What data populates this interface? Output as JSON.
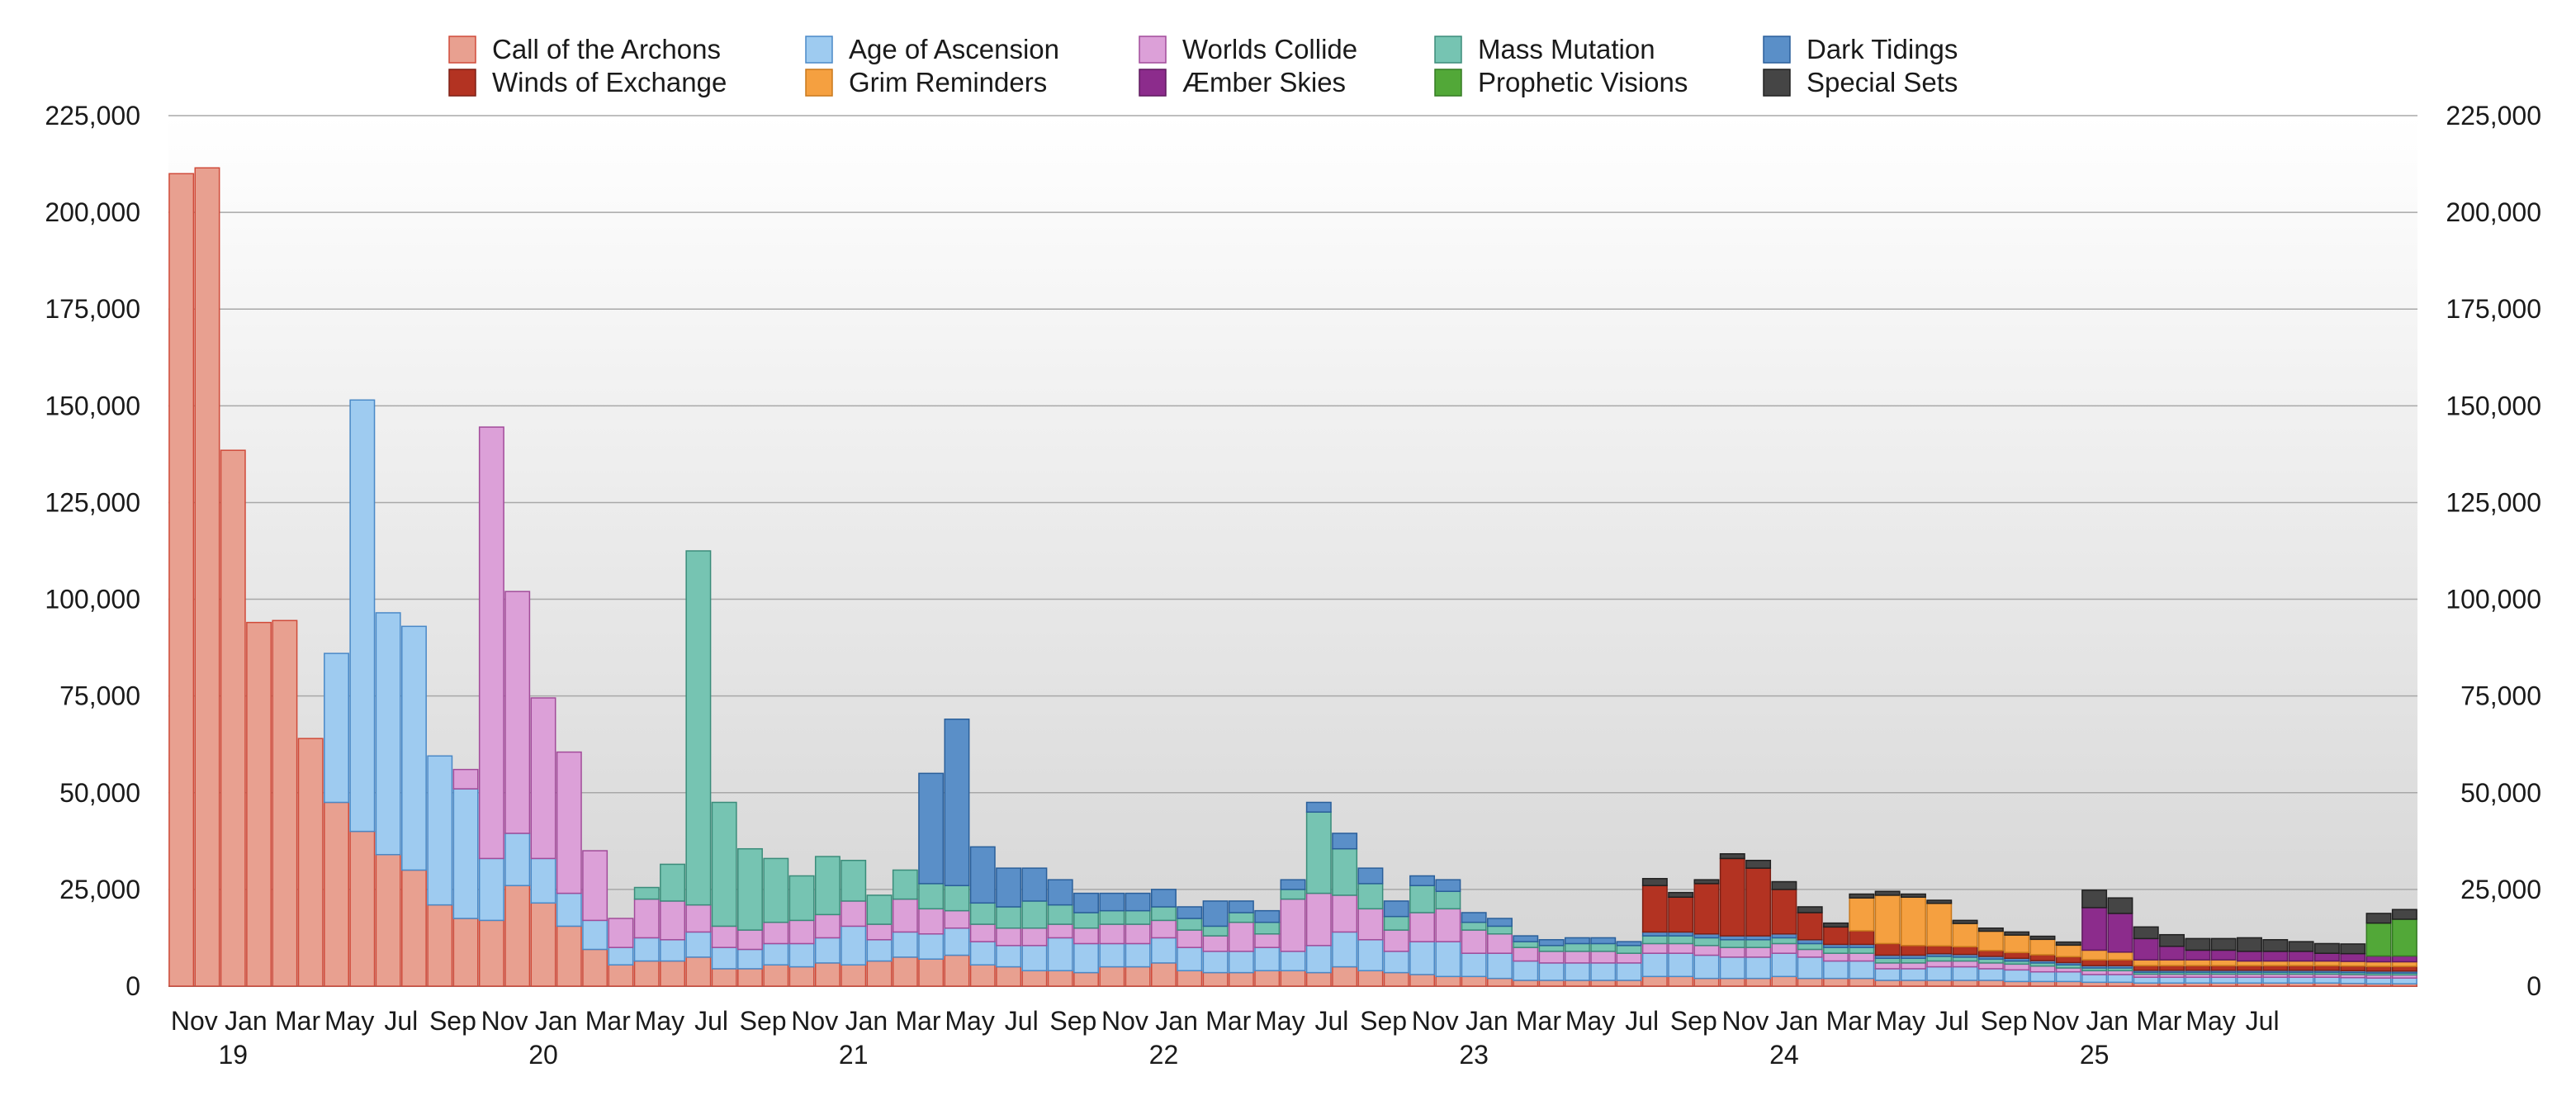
{
  "chart_data": {
    "type": "stacked-bar",
    "title": "",
    "xlabel": "",
    "ylabel": "",
    "ylim": [
      0,
      225000
    ],
    "yticks": [
      "0",
      "25,000",
      "50,000",
      "75,000",
      "100,000",
      "125,000",
      "150,000",
      "175,000",
      "200,000",
      "225,000"
    ],
    "y_axis_sides": "left and right",
    "grid": "horizontal",
    "background": "gradient white to light gray",
    "legend": "top, 5 columns x 2 rows",
    "start_month": "2018-11",
    "month_tick_labels": [
      "Nov",
      "Jan",
      "Mar",
      "May",
      "Jul",
      "Sep",
      "Nov",
      "Jan",
      "Mar",
      "May",
      "Jul",
      "Sep",
      "Nov",
      "Jan",
      "Mar",
      "May",
      "Jul",
      "Sep",
      "Nov",
      "Jan",
      "Mar",
      "May",
      "Jul",
      "Sep",
      "Nov",
      "Jan",
      "Mar",
      "May",
      "Jul",
      "Sep",
      "Nov",
      "Jan",
      "Mar",
      "May",
      "Jul",
      "Sep",
      "Nov",
      "Jan",
      "Mar",
      "May",
      "Jul"
    ],
    "year_tick_labels": [
      "19",
      "20",
      "21",
      "22",
      "23",
      "24",
      "25"
    ],
    "series": [
      {
        "name": "Call of the Archons",
        "color": "#e8a090",
        "edge": "#d04b3a",
        "values": [
          210000,
          211500,
          138500,
          94000,
          94500,
          64000,
          47500,
          40000,
          34000,
          30000,
          21000,
          17500,
          17000,
          26000,
          21500,
          15500,
          9500,
          5500,
          6500,
          6500,
          7500,
          4500,
          4500,
          5500,
          5000,
          6000,
          5500,
          6500,
          7500,
          7000,
          8000,
          5500,
          5000,
          4000,
          4000,
          3500,
          5000,
          5000,
          6000,
          4000,
          3500,
          3500,
          4000,
          4000,
          3500,
          5000,
          4000,
          3500,
          3000,
          2500,
          2500,
          2000,
          1500,
          1500,
          1500,
          1500,
          1500,
          2500,
          2500,
          2000,
          2000,
          2000,
          2500,
          2000,
          2000,
          2000,
          1500,
          1500,
          1500,
          1500,
          1500,
          1200,
          1200,
          1200,
          1000,
          1000,
          800,
          800,
          800,
          800,
          800,
          800,
          800,
          800,
          700,
          600,
          600
        ]
      },
      {
        "name": "Age of Ascension",
        "color": "#9ecbf0",
        "edge": "#4a89c7",
        "values": [
          0,
          0,
          0,
          0,
          0,
          0,
          38500,
          111500,
          62500,
          63000,
          38500,
          33500,
          16000,
          13500,
          11500,
          8500,
          7500,
          4500,
          6000,
          5500,
          6500,
          5500,
          5000,
          5500,
          6000,
          6500,
          10000,
          5500,
          6500,
          6500,
          7000,
          6000,
          5500,
          6500,
          8500,
          7500,
          6000,
          6000,
          6500,
          6000,
          5500,
          5500,
          6000,
          5000,
          7000,
          9000,
          8000,
          5500,
          8500,
          9000,
          6000,
          6500,
          5000,
          4500,
          4500,
          4500,
          4500,
          6000,
          6000,
          6000,
          5500,
          5500,
          6000,
          5500,
          4500,
          4500,
          3000,
          3000,
          3500,
          3500,
          3000,
          3000,
          2500,
          2500,
          2000,
          2000,
          1500,
          1500,
          1500,
          1500,
          1500,
          1500,
          1500,
          1500,
          1500,
          1500,
          1500
        ]
      },
      {
        "name": "Worlds Collide",
        "color": "#dca0d8",
        "edge": "#a24c9a",
        "values": [
          0,
          0,
          0,
          0,
          0,
          0,
          0,
          0,
          0,
          0,
          0,
          5000,
          111500,
          62500,
          41500,
          36500,
          18000,
          7500,
          10000,
          10000,
          7000,
          5500,
          5000,
          5500,
          6000,
          6000,
          6500,
          4000,
          8500,
          6500,
          4500,
          4500,
          4500,
          4500,
          3500,
          4000,
          5000,
          5000,
          4500,
          4500,
          4000,
          7500,
          3500,
          13500,
          13500,
          9500,
          8000,
          5500,
          7500,
          8500,
          6000,
          5000,
          3500,
          3000,
          3000,
          3000,
          2500,
          2500,
          2500,
          2500,
          2500,
          2500,
          2500,
          2000,
          2000,
          2000,
          1500,
          1500,
          1500,
          1500,
          1500,
          1500,
          1500,
          1000,
          1000,
          1000,
          800,
          800,
          800,
          800,
          800,
          800,
          800,
          800,
          800,
          800,
          800
        ]
      },
      {
        "name": "Mass Mutation",
        "color": "#76c4b2",
        "edge": "#3b8c7a",
        "values": [
          0,
          0,
          0,
          0,
          0,
          0,
          0,
          0,
          0,
          0,
          0,
          0,
          0,
          0,
          0,
          0,
          0,
          0,
          3000,
          9500,
          91500,
          32000,
          21000,
          16500,
          11500,
          15000,
          10500,
          7500,
          7500,
          6500,
          6500,
          5500,
          5500,
          7000,
          5000,
          4000,
          3500,
          3500,
          3500,
          3000,
          2500,
          2500,
          3000,
          2500,
          21000,
          12000,
          6500,
          3500,
          7000,
          4500,
          2000,
          2000,
          1500,
          1500,
          2000,
          2000,
          2000,
          2000,
          2000,
          2000,
          2000,
          2000,
          1500,
          1500,
          1500,
          1500,
          1200,
          1200,
          1200,
          1000,
          1000,
          800,
          800,
          800,
          700,
          700,
          500,
          500,
          500,
          500,
          500,
          500,
          500,
          500,
          500,
          500,
          500
        ]
      },
      {
        "name": "Dark Tidings",
        "color": "#5a8fc8",
        "edge": "#2a5f9a",
        "values": [
          0,
          0,
          0,
          0,
          0,
          0,
          0,
          0,
          0,
          0,
          0,
          0,
          0,
          0,
          0,
          0,
          0,
          0,
          0,
          0,
          0,
          0,
          0,
          0,
          0,
          0,
          0,
          0,
          0,
          28500,
          43000,
          14500,
          10000,
          8500,
          6500,
          5000,
          4500,
          4500,
          4500,
          3000,
          6500,
          3000,
          3000,
          2500,
          2500,
          4000,
          4000,
          4000,
          2500,
          3000,
          2500,
          2000,
          1500,
          1500,
          1500,
          1500,
          1000,
          1000,
          1000,
          1000,
          1000,
          1000,
          1000,
          1000,
          800,
          800,
          800,
          800,
          700,
          700,
          700,
          700,
          600,
          600,
          600,
          600,
          500,
          500,
          500,
          500,
          500,
          500,
          500,
          500,
          500,
          500,
          500
        ]
      },
      {
        "name": "Winds of Exchange",
        "color": "#b33322",
        "edge": "#7d1f14",
        "values": [
          0,
          0,
          0,
          0,
          0,
          0,
          0,
          0,
          0,
          0,
          0,
          0,
          0,
          0,
          0,
          0,
          0,
          0,
          0,
          0,
          0,
          0,
          0,
          0,
          0,
          0,
          0,
          0,
          0,
          0,
          0,
          0,
          0,
          0,
          0,
          0,
          0,
          0,
          0,
          0,
          0,
          0,
          0,
          0,
          0,
          0,
          0,
          0,
          0,
          0,
          0,
          0,
          0,
          0,
          0,
          0,
          0,
          12000,
          9000,
          13000,
          20000,
          17500,
          11500,
          7000,
          4500,
          3500,
          3000,
          2500,
          2000,
          2000,
          1500,
          1500,
          1500,
          1500,
          1500,
          1500,
          1200,
          1200,
          1200,
          1200,
          1200,
          1200,
          1200,
          1200,
          1200,
          1200,
          1200
        ]
      },
      {
        "name": "Grim Reminders",
        "color": "#f5a040",
        "edge": "#c8781c",
        "values": [
          0,
          0,
          0,
          0,
          0,
          0,
          0,
          0,
          0,
          0,
          0,
          0,
          0,
          0,
          0,
          0,
          0,
          0,
          0,
          0,
          0,
          0,
          0,
          0,
          0,
          0,
          0,
          0,
          0,
          0,
          0,
          0,
          0,
          0,
          0,
          0,
          0,
          0,
          0,
          0,
          0,
          0,
          0,
          0,
          0,
          0,
          0,
          0,
          0,
          0,
          0,
          0,
          0,
          0,
          0,
          0,
          0,
          0,
          0,
          0,
          0,
          0,
          0,
          0,
          0,
          8500,
          12500,
          12500,
          11000,
          6000,
          5000,
          4500,
          4000,
          3000,
          2500,
          2000,
          1500,
          1500,
          1500,
          1500,
          1200,
          1200,
          1200,
          1200,
          1200,
          1200,
          1200
        ]
      },
      {
        "name": "Æmber Skies",
        "color": "#8c2c8c",
        "edge": "#5e1a5e",
        "values": [
          0,
          0,
          0,
          0,
          0,
          0,
          0,
          0,
          0,
          0,
          0,
          0,
          0,
          0,
          0,
          0,
          0,
          0,
          0,
          0,
          0,
          0,
          0,
          0,
          0,
          0,
          0,
          0,
          0,
          0,
          0,
          0,
          0,
          0,
          0,
          0,
          0,
          0,
          0,
          0,
          0,
          0,
          0,
          0,
          0,
          0,
          0,
          0,
          0,
          0,
          0,
          0,
          0,
          0,
          0,
          0,
          0,
          0,
          0,
          0,
          0,
          0,
          0,
          0,
          0,
          0,
          0,
          0,
          0,
          0,
          0,
          0,
          0,
          0,
          11000,
          10000,
          5500,
          3500,
          2500,
          2500,
          2500,
          2500,
          2500,
          2000,
          2000,
          1500,
          1500
        ]
      },
      {
        "name": "Prophetic Visions",
        "color": "#52a838",
        "edge": "#347a22",
        "values": [
          0,
          0,
          0,
          0,
          0,
          0,
          0,
          0,
          0,
          0,
          0,
          0,
          0,
          0,
          0,
          0,
          0,
          0,
          0,
          0,
          0,
          0,
          0,
          0,
          0,
          0,
          0,
          0,
          0,
          0,
          0,
          0,
          0,
          0,
          0,
          0,
          0,
          0,
          0,
          0,
          0,
          0,
          0,
          0,
          0,
          0,
          0,
          0,
          0,
          0,
          0,
          0,
          0,
          0,
          0,
          0,
          0,
          0,
          0,
          0,
          0,
          0,
          0,
          0,
          0,
          0,
          0,
          0,
          0,
          0,
          0,
          0,
          0,
          0,
          0,
          0,
          0,
          0,
          0,
          0,
          0,
          0,
          0,
          0,
          0,
          8500,
          9500
        ]
      },
      {
        "name": "Special Sets",
        "color": "#454545",
        "edge": "#202020",
        "values": [
          0,
          0,
          0,
          0,
          0,
          0,
          0,
          0,
          0,
          0,
          0,
          0,
          0,
          0,
          0,
          0,
          0,
          0,
          0,
          0,
          0,
          0,
          0,
          0,
          0,
          0,
          0,
          0,
          0,
          0,
          0,
          0,
          0,
          0,
          0,
          0,
          0,
          0,
          0,
          0,
          0,
          0,
          0,
          0,
          0,
          0,
          0,
          0,
          0,
          0,
          0,
          0,
          0,
          0,
          0,
          0,
          0,
          1800,
          1200,
          1000,
          1200,
          2000,
          2000,
          1500,
          1000,
          1000,
          1000,
          800,
          800,
          800,
          800,
          800,
          800,
          800,
          4500,
          4000,
          3000,
          3000,
          3000,
          3000,
          3500,
          3000,
          2500,
          2500,
          2500,
          2500,
          2500
        ]
      }
    ]
  }
}
